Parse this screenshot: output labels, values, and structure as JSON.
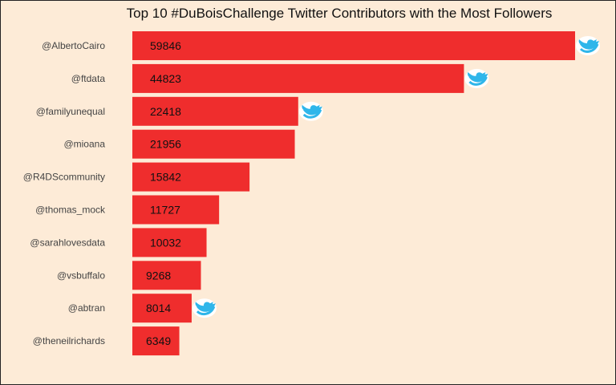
{
  "chart_data": {
    "type": "bar",
    "orientation": "horizontal",
    "title": "Top 10 #DuBoisChallenge Twitter Contributors with the Most Followers",
    "xlabel": "",
    "ylabel": "",
    "categories": [
      "@AlbertoCairo",
      "@ftdata",
      "@familyunequal",
      "@mioana",
      "@R4DScommunity",
      "@thomas_mock",
      "@sarahlovesdata",
      "@vsbuffalo",
      "@abtran",
      "@theneilrichards"
    ],
    "values": [
      59846,
      44823,
      22418,
      21956,
      15842,
      11727,
      10032,
      9268,
      8014,
      6349
    ],
    "value_labels": [
      "59846",
      "44823",
      "22418",
      "21956",
      "15842",
      "11727",
      "10032",
      "9268",
      "8014",
      "6349"
    ],
    "twitter_icon_rows": [
      0,
      1,
      2,
      8
    ],
    "grid": false,
    "legend": "none",
    "bar_color": "#ef2d2d",
    "icon_color": "#2fb6ea",
    "background_color": "#fdebd7"
  }
}
